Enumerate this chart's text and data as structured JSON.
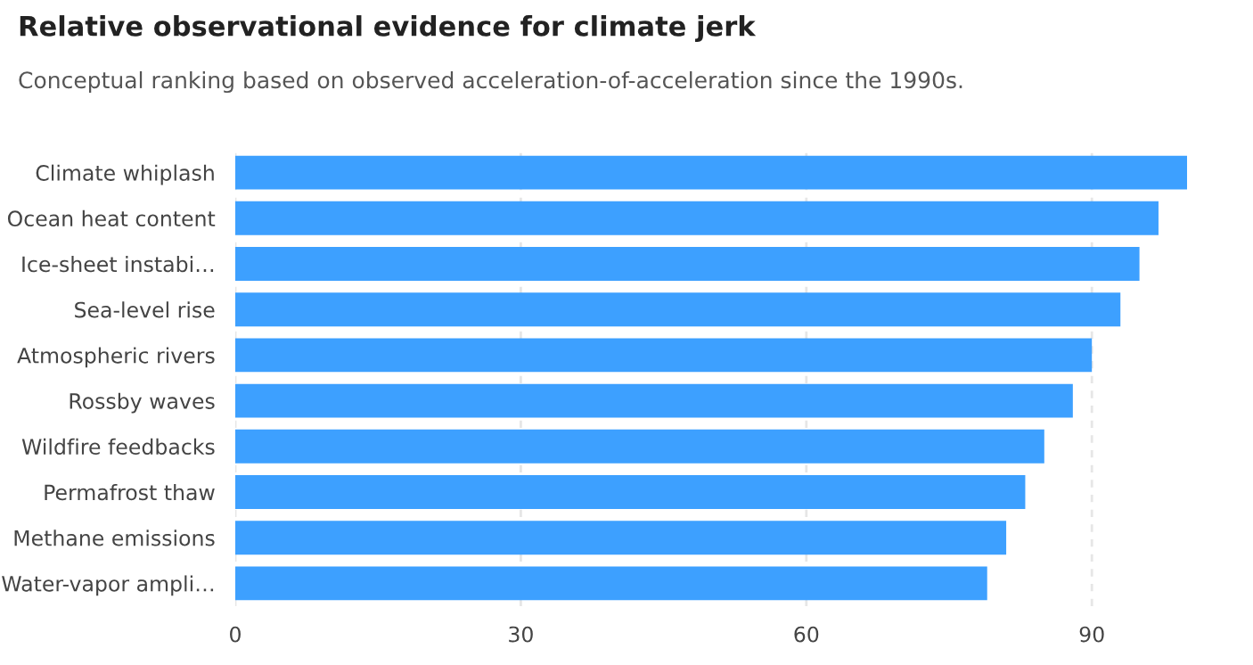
{
  "chart_data": {
    "type": "bar",
    "orientation": "horizontal",
    "title": "Relative observational evidence for climate jerk",
    "subtitle": "Conceptual ranking based on observed acceleration-of-acceleration since the 1990s.",
    "categories": [
      "Climate whiplash",
      "Ocean heat content",
      "Ice-sheet instabi…",
      "Sea-level rise",
      "Atmospheric rivers",
      "Rossby waves",
      "Wildfire feedbacks",
      "Permafrost thaw",
      "Methane emissions",
      "Water-vapor ampli…"
    ],
    "values": [
      100,
      97,
      95,
      93,
      90,
      88,
      85,
      83,
      81,
      79
    ],
    "color": "#3da0ff",
    "xlim": [
      0,
      100
    ],
    "xticks": [
      0,
      30,
      60,
      90
    ],
    "grid": "x"
  }
}
